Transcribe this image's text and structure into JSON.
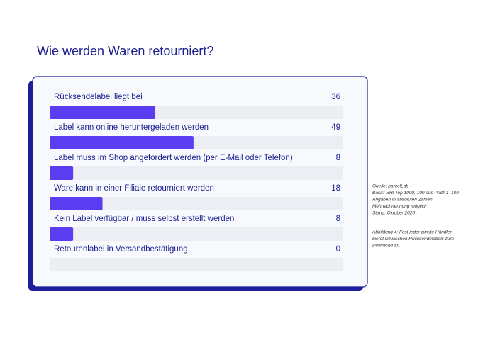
{
  "chart_data": {
    "type": "bar",
    "orientation": "horizontal",
    "title": "Wie werden Waren retourniert?",
    "categories": [
      "Rücksendelabel liegt bei",
      "Label kann online heruntergeladen werden",
      "Label muss im Shop angefordert werden (per E-Mail oder Telefon)",
      "Ware kann in einer Filiale retourniert werden",
      "Kein Label verfügbar / muss selbst erstellt werden",
      "Retourenlabel in Versandbestätigung"
    ],
    "values": [
      36,
      49,
      8,
      18,
      8,
      0
    ],
    "xlim": [
      0,
      100
    ],
    "color": "#5a3df0",
    "notes": [
      "Quelle: parcelLab",
      "Basis: EHI Top 1000, 100 aus Platz 1–109",
      "Angaben in absoluten Zahlen",
      "Mehrfachnennung möglich",
      "Stand: Oktober 2020"
    ],
    "caption": [
      "Abbildung 4: Fast jeder zweite Händler",
      "bietet inzwischen Rücksendelabels zum",
      "Download an."
    ]
  }
}
